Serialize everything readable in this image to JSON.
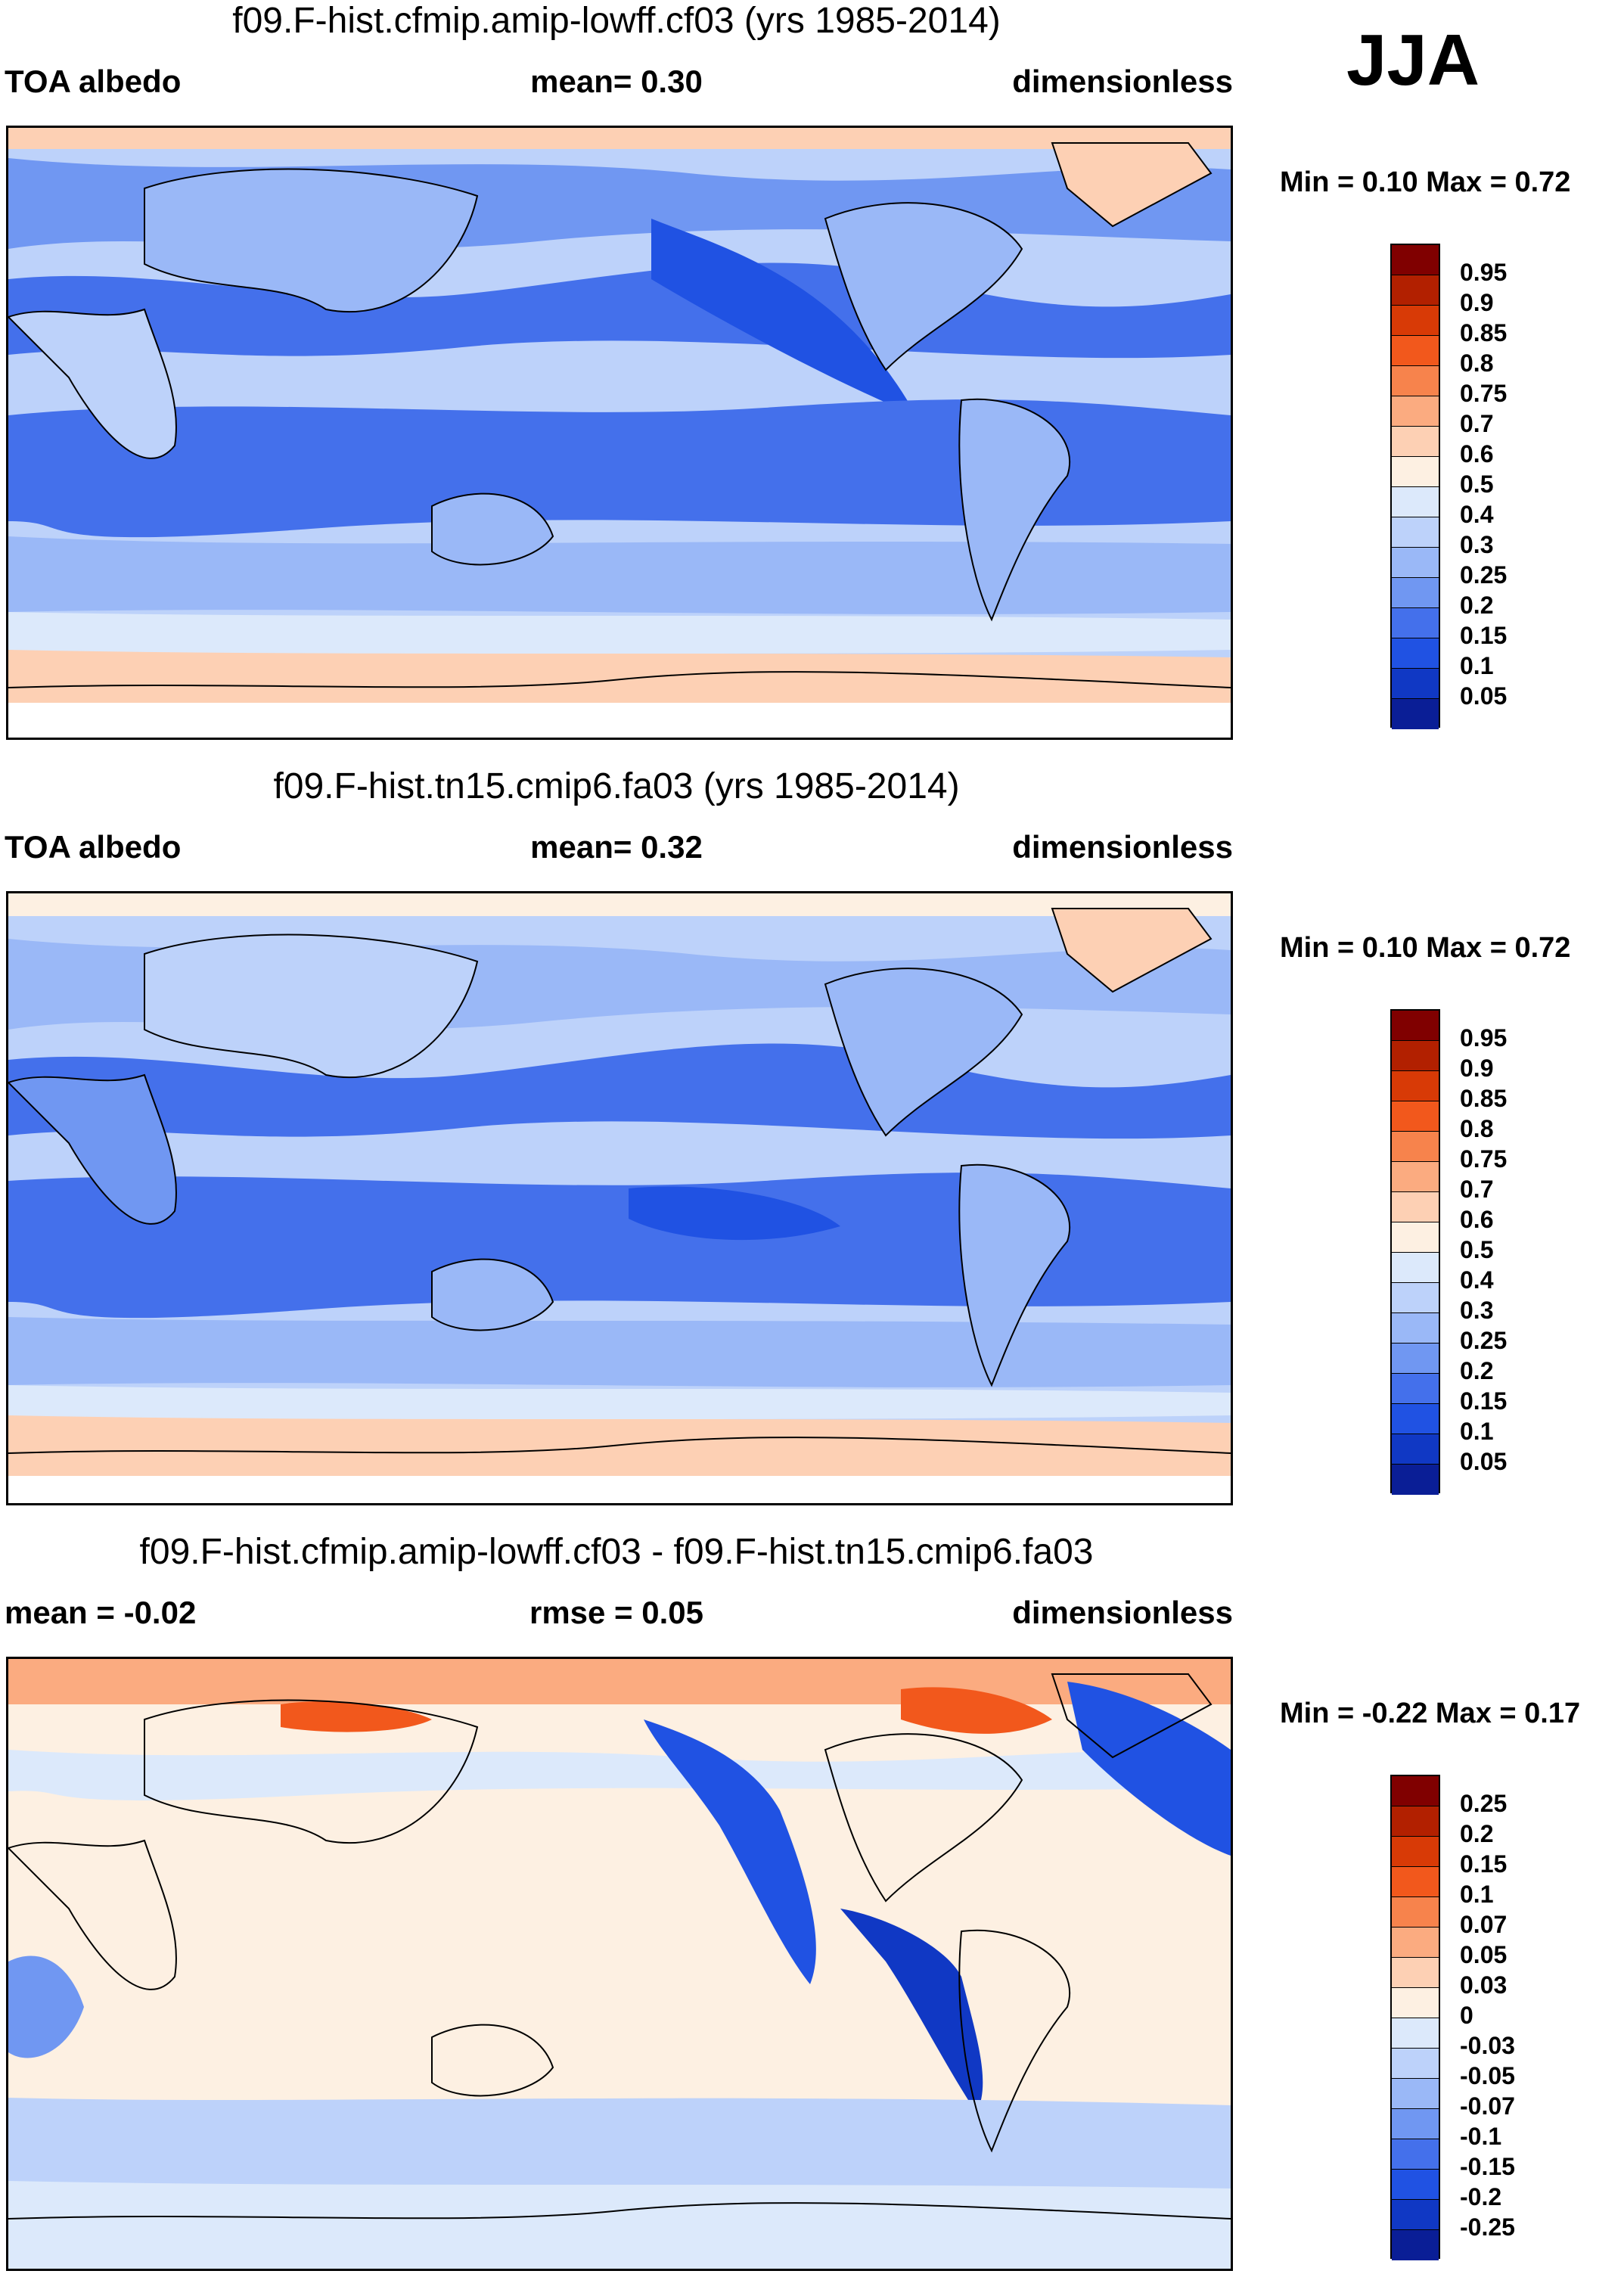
{
  "season": "JJA",
  "panels": [
    {
      "title": "f09.F-hist.cfmip.amip-lowff.cf03 (yrs 1985-2014)",
      "left_label": "TOA albedo",
      "mid_label": "mean=   0.30",
      "right_label": "dimensionless",
      "minmax": "Min =   0.10 Max =   0.72",
      "colorbar": {
        "labels": [
          "0.95",
          "0.9",
          "0.85",
          "0.8",
          "0.75",
          "0.7",
          "0.6",
          "0.5",
          "0.4",
          "0.3",
          "0.25",
          "0.2",
          "0.15",
          "0.1",
          "0.05"
        ],
        "colors": [
          "#800000",
          "#b22000",
          "#d83a06",
          "#f2581c",
          "#f7834c",
          "#fbab80",
          "#fdd0b4",
          "#fdf0e2",
          "#dce9fb",
          "#bdd2fa",
          "#9ab8f7",
          "#7097f2",
          "#4470eb",
          "#2052e3",
          "#1038c4",
          "#0a1e96"
        ]
      }
    },
    {
      "title": "f09.F-hist.tn15.cmip6.fa03 (yrs 1985-2014)",
      "left_label": "TOA albedo",
      "mid_label": "mean=   0.32",
      "right_label": "dimensionless",
      "minmax": "Min =   0.10 Max =   0.72",
      "colorbar": {
        "labels": [
          "0.95",
          "0.9",
          "0.85",
          "0.8",
          "0.75",
          "0.7",
          "0.6",
          "0.5",
          "0.4",
          "0.3",
          "0.25",
          "0.2",
          "0.15",
          "0.1",
          "0.05"
        ],
        "colors": [
          "#800000",
          "#b22000",
          "#d83a06",
          "#f2581c",
          "#f7834c",
          "#fbab80",
          "#fdd0b4",
          "#fdf0e2",
          "#dce9fb",
          "#bdd2fa",
          "#9ab8f7",
          "#7097f2",
          "#4470eb",
          "#2052e3",
          "#1038c4",
          "#0a1e96"
        ]
      }
    },
    {
      "title": "f09.F-hist.cfmip.amip-lowff.cf03 - f09.F-hist.tn15.cmip6.fa03",
      "left_label": "mean =  -0.02",
      "mid_label": "rmse =   0.05",
      "right_label": "dimensionless",
      "minmax": "Min =  -0.22 Max =   0.17",
      "colorbar": {
        "labels": [
          "0.25",
          "0.2",
          "0.15",
          "0.1",
          "0.07",
          "0.05",
          "0.03",
          "0",
          "-0.03",
          "-0.05",
          "-0.07",
          "-0.1",
          "-0.15",
          "-0.2",
          "-0.25"
        ],
        "colors": [
          "#800000",
          "#b22000",
          "#d83a06",
          "#f2581c",
          "#f7834c",
          "#fbab80",
          "#fdd0b4",
          "#fdf0e2",
          "#dce9fb",
          "#bdd2fa",
          "#9ab8f7",
          "#7097f2",
          "#4470eb",
          "#2052e3",
          "#1038c4",
          "#0a1e96"
        ]
      }
    }
  ]
}
